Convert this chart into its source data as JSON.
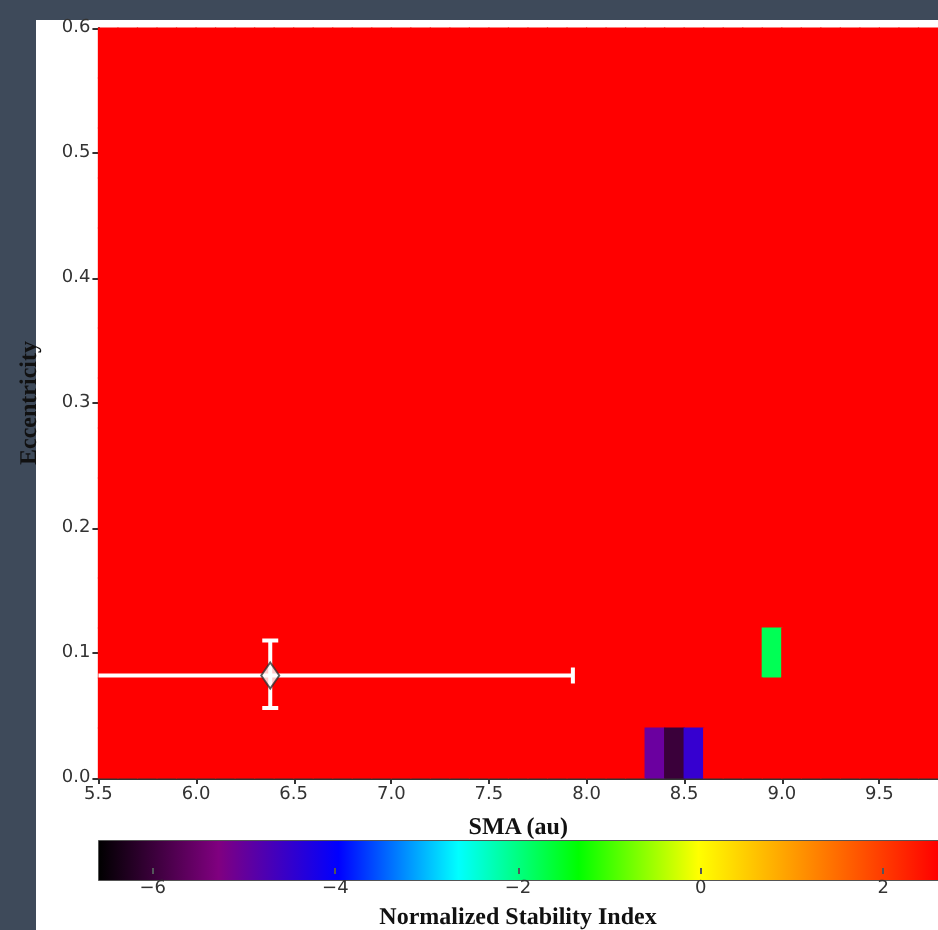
{
  "chart_data": {
    "type": "scatter",
    "xlabel": "SMA (au)",
    "ylabel": "Eccentricity",
    "clabel": "Normalized Stability Index",
    "marker": "square",
    "x": [
      5.55,
      5.65,
      5.75,
      5.85,
      5.95,
      6.05,
      6.15,
      6.25,
      6.35,
      6.45,
      6.55,
      6.65,
      6.75,
      6.85,
      6.95,
      7.05,
      7.15,
      7.25,
      7.35,
      7.45,
      7.55,
      7.65,
      7.75,
      7.85,
      7.95,
      8.05,
      8.15,
      8.25,
      8.35,
      8.45,
      8.55,
      8.65,
      8.75,
      8.85,
      8.95,
      9.05,
      9.15,
      9.25,
      9.35,
      9.45,
      9.55,
      9.65,
      9.75
    ],
    "xlim": [
      5.5,
      9.8
    ],
    "ylim": [
      0,
      0.6
    ],
    "xticks": [
      5.5,
      {
        "value": 6,
        "label": "6.0"
      },
      6.5,
      {
        "value": 7,
        "label": "7.0"
      },
      7.5,
      {
        "value": 8,
        "label": "8.0"
      },
      8.5,
      {
        "value": 9,
        "label": "9.0"
      },
      9.5
    ],
    "yticks": [
      {
        "value": 0,
        "label": "0.0"
      },
      0.1,
      0.2,
      0.3,
      0.4,
      0.5,
      0.6
    ],
    "clim": [
      -6.6,
      2.6
    ],
    "cticks": [
      {
        "value": -6,
        "label": "−6"
      },
      {
        "value": -4,
        "label": "−4"
      },
      {
        "value": -2,
        "label": "−2"
      },
      0,
      2
    ],
    "series": [
      {
        "values": [
          0.58,
          0.58,
          0.58,
          0.58,
          0.58,
          0.58,
          0.58,
          0.58,
          0.58,
          0.58,
          0.58,
          0.58,
          0.58,
          0.58,
          0.58,
          0.58,
          0.58,
          0.58,
          0.58,
          0.58,
          0.58,
          0.58,
          0.58,
          0.58,
          0.58,
          0.58,
          0.58,
          0.58,
          0.58,
          0.58,
          0.58,
          0.58,
          0.58,
          0.58,
          0.58,
          0.58,
          0.58,
          0.58,
          0.58,
          0.58,
          0.58,
          0.58,
          0.58
        ],
        "cvalues": [
          2.6,
          2.6,
          2.6,
          2.6,
          2.6,
          2.6,
          2.6,
          2.6,
          2.6,
          2.6,
          2.6,
          2.6,
          2.6,
          2.6,
          2.6,
          2.6,
          2.6,
          2.6,
          2.6,
          2.6,
          2.6,
          2.6,
          2.6,
          2.6,
          2.6,
          2.6,
          2.6,
          2.6,
          2.6,
          2.6,
          2.6,
          2.6,
          2.6,
          2.6,
          2.6,
          2.6,
          2.6,
          2.6,
          2.6,
          2.6,
          2.6,
          2.6,
          2.6
        ]
      },
      {
        "values": [
          0.54,
          0.54,
          0.54,
          0.54,
          0.54,
          0.54,
          0.54,
          0.54,
          0.54,
          0.54,
          0.54,
          0.54,
          0.54,
          0.54,
          0.54,
          0.54,
          0.54,
          0.54,
          0.54,
          0.54,
          0.54,
          0.54,
          0.54,
          0.54,
          0.54,
          0.54,
          0.54,
          0.54,
          0.54,
          0.54,
          0.54,
          0.54,
          0.54,
          0.54,
          0.54,
          0.54,
          0.54,
          0.54,
          0.54,
          0.54,
          0.54,
          0.54,
          0.54
        ],
        "cvalues": [
          2.6,
          2.6,
          2.6,
          2.6,
          2.6,
          2.6,
          2.6,
          2.6,
          2.6,
          2.6,
          2.6,
          2.6,
          2.6,
          2.6,
          2.6,
          2.6,
          2.6,
          2.6,
          2.6,
          2.6,
          2.6,
          2.6,
          2.6,
          2.6,
          2.6,
          2.6,
          2.6,
          2.6,
          2.6,
          2.6,
          2.6,
          2.6,
          2.6,
          2.6,
          2.6,
          2.6,
          2.6,
          2.6,
          2.6,
          2.6,
          2.6,
          2.6,
          2.6
        ]
      },
      {
        "values": [
          0.5,
          0.5,
          0.5,
          0.5,
          0.5,
          0.5,
          0.5,
          0.5,
          0.5,
          0.5,
          0.5,
          0.5,
          0.5,
          0.5,
          0.5,
          0.5,
          0.5,
          0.5,
          0.5,
          0.5,
          0.5,
          0.5,
          0.5,
          0.5,
          0.5,
          0.5,
          0.5,
          0.5,
          0.5,
          0.5,
          0.5,
          0.5,
          0.5,
          0.5,
          0.5,
          0.5,
          0.5,
          0.5,
          0.5,
          0.5,
          0.5,
          0.5,
          0.5
        ],
        "cvalues": [
          2.6,
          2.6,
          2.6,
          2.6,
          2.6,
          2.6,
          2.6,
          2.6,
          2.6,
          2.6,
          2.6,
          2.6,
          2.6,
          2.6,
          2.6,
          2.6,
          2.6,
          2.6,
          2.6,
          2.6,
          2.6,
          2.6,
          2.6,
          2.6,
          2.6,
          2.6,
          2.6,
          2.6,
          2.6,
          2.6,
          2.6,
          2.6,
          2.6,
          2.6,
          2.6,
          2.6,
          2.6,
          2.6,
          2.6,
          2.6,
          2.6,
          2.6,
          2.6
        ]
      },
      {
        "values": [
          0.46,
          0.46,
          0.46,
          0.46,
          0.46,
          0.46,
          0.46,
          0.46,
          0.46,
          0.46,
          0.46,
          0.46,
          0.46,
          0.46,
          0.46,
          0.46,
          0.46,
          0.46,
          0.46,
          0.46,
          0.46,
          0.46,
          0.46,
          0.46,
          0.46,
          0.46,
          0.46,
          0.46,
          0.46,
          0.46,
          0.46,
          0.46,
          0.46,
          0.46,
          0.46,
          0.46,
          0.46,
          0.46,
          0.46,
          0.46,
          0.46,
          0.46,
          0.46
        ],
        "cvalues": [
          2.6,
          2.6,
          2.6,
          2.6,
          2.6,
          2.6,
          2.6,
          2.6,
          2.6,
          2.6,
          2.6,
          2.6,
          2.6,
          2.6,
          2.6,
          2.6,
          2.6,
          2.6,
          2.6,
          2.6,
          2.6,
          2.6,
          2.6,
          2.6,
          2.6,
          2.6,
          2.6,
          2.6,
          2.6,
          2.6,
          2.6,
          2.6,
          2.6,
          2.6,
          2.6,
          2.6,
          2.6,
          2.6,
          2.6,
          2.6,
          2.6,
          2.6,
          2.6
        ]
      },
      {
        "values": [
          0.42,
          0.42,
          0.42,
          0.42,
          0.42,
          0.42,
          0.42,
          0.42,
          0.42,
          0.42,
          0.42,
          0.42,
          0.42,
          0.42,
          0.42,
          0.42,
          0.42,
          0.42,
          0.42,
          0.42,
          0.42,
          0.42,
          0.42,
          0.42,
          0.42,
          0.42,
          0.42,
          0.42,
          0.42,
          0.42,
          0.42,
          0.42,
          0.42,
          0.42,
          0.42,
          0.42,
          0.42,
          0.42,
          0.42,
          0.42,
          0.42,
          0.42,
          0.42
        ],
        "cvalues": [
          2.6,
          2.6,
          2.6,
          2.6,
          2.6,
          2.6,
          2.6,
          2.6,
          2.6,
          2.6,
          2.6,
          2.6,
          2.6,
          2.6,
          2.6,
          2.6,
          2.6,
          2.6,
          2.6,
          2.6,
          2.6,
          2.6,
          2.6,
          2.6,
          2.6,
          2.6,
          2.6,
          2.6,
          2.6,
          2.6,
          2.6,
          2.6,
          2.6,
          2.6,
          2.6,
          2.6,
          2.6,
          2.6,
          2.6,
          2.6,
          2.6,
          2.6,
          2.6
        ]
      },
      {
        "values": [
          0.38,
          0.38,
          0.38,
          0.38,
          0.38,
          0.38,
          0.38,
          0.38,
          0.38,
          0.38,
          0.38,
          0.38,
          0.38,
          0.38,
          0.38,
          0.38,
          0.38,
          0.38,
          0.38,
          0.38,
          0.38,
          0.38,
          0.38,
          0.38,
          0.38,
          0.38,
          0.38,
          0.38,
          0.38,
          0.38,
          0.38,
          0.38,
          0.38,
          0.38,
          0.38,
          0.38,
          0.38,
          0.38,
          0.38,
          0.38,
          0.38,
          0.38,
          0.38
        ],
        "cvalues": [
          2.6,
          2.6,
          2.6,
          2.6,
          2.6,
          2.6,
          2.6,
          2.6,
          2.6,
          2.6,
          2.6,
          2.6,
          2.6,
          2.6,
          2.6,
          2.6,
          2.6,
          2.6,
          2.6,
          2.6,
          2.6,
          2.6,
          2.6,
          2.6,
          2.6,
          2.6,
          2.6,
          2.6,
          2.6,
          2.6,
          2.6,
          2.6,
          2.6,
          2.6,
          2.6,
          2.6,
          2.6,
          2.6,
          2.6,
          2.6,
          2.6,
          2.6,
          2.6
        ]
      },
      {
        "values": [
          0.34,
          0.34,
          0.34,
          0.34,
          0.34,
          0.34,
          0.34,
          0.34,
          0.34,
          0.34,
          0.34,
          0.34,
          0.34,
          0.34,
          0.34,
          0.34,
          0.34,
          0.34,
          0.34,
          0.34,
          0.34,
          0.34,
          0.34,
          0.34,
          0.34,
          0.34,
          0.34,
          0.34,
          0.34,
          0.34,
          0.34,
          0.34,
          0.34,
          0.34,
          0.34,
          0.34,
          0.34,
          0.34,
          0.34,
          0.34,
          0.34,
          0.34,
          0.34
        ],
        "cvalues": [
          2.6,
          2.6,
          2.6,
          2.6,
          2.6,
          2.6,
          2.6,
          2.6,
          2.6,
          2.6,
          2.6,
          2.6,
          2.6,
          2.6,
          2.6,
          2.6,
          2.6,
          2.6,
          2.6,
          2.6,
          2.6,
          2.6,
          2.6,
          2.6,
          2.6,
          2.6,
          2.6,
          2.6,
          2.6,
          2.6,
          2.6,
          2.6,
          2.6,
          2.6,
          2.6,
          2.6,
          2.6,
          2.6,
          2.6,
          2.6,
          2.6,
          2.6,
          2.6
        ]
      },
      {
        "values": [
          0.3,
          0.3,
          0.3,
          0.3,
          0.3,
          0.3,
          0.3,
          0.3,
          0.3,
          0.3,
          0.3,
          0.3,
          0.3,
          0.3,
          0.3,
          0.3,
          0.3,
          0.3,
          0.3,
          0.3,
          0.3,
          0.3,
          0.3,
          0.3,
          0.3,
          0.3,
          0.3,
          0.3,
          0.3,
          0.3,
          0.3,
          0.3,
          0.3,
          0.3,
          0.3,
          0.3,
          0.3,
          0.3,
          0.3,
          0.3,
          0.3,
          0.3,
          0.3
        ],
        "cvalues": [
          2.6,
          2.6,
          2.6,
          2.6,
          2.6,
          2.6,
          2.6,
          2.6,
          2.6,
          2.6,
          2.6,
          2.6,
          2.6,
          2.6,
          2.6,
          2.6,
          2.6,
          2.6,
          2.6,
          2.6,
          2.6,
          2.6,
          2.6,
          2.6,
          2.6,
          2.6,
          2.6,
          2.6,
          2.6,
          2.6,
          2.6,
          2.6,
          2.6,
          2.6,
          2.6,
          2.6,
          2.6,
          2.6,
          2.6,
          2.6,
          2.6,
          2.6,
          2.6
        ]
      },
      {
        "values": [
          0.26,
          0.26,
          0.26,
          0.26,
          0.26,
          0.26,
          0.26,
          0.26,
          0.26,
          0.26,
          0.26,
          0.26,
          0.26,
          0.26,
          0.26,
          0.26,
          0.26,
          0.26,
          0.26,
          0.26,
          0.26,
          0.26,
          0.26,
          0.26,
          0.26,
          0.26,
          0.26,
          0.26,
          0.26,
          0.26,
          0.26,
          0.26,
          0.26,
          0.26,
          0.26,
          0.26,
          0.26,
          0.26,
          0.26,
          0.26,
          0.26,
          0.26,
          0.26
        ],
        "cvalues": [
          2.6,
          2.6,
          2.6,
          2.6,
          2.6,
          2.6,
          2.6,
          2.6,
          2.6,
          2.6,
          2.6,
          2.6,
          2.6,
          2.6,
          2.6,
          2.6,
          2.6,
          2.6,
          2.6,
          2.6,
          2.6,
          2.6,
          2.6,
          2.6,
          2.6,
          2.6,
          2.6,
          2.6,
          2.6,
          2.6,
          2.6,
          2.6,
          2.6,
          2.6,
          2.6,
          2.6,
          2.6,
          2.6,
          2.6,
          2.6,
          2.6,
          2.6,
          2.6
        ]
      },
      {
        "values": [
          0.22,
          0.22,
          0.22,
          0.22,
          0.22,
          0.22,
          0.22,
          0.22,
          0.22,
          0.22,
          0.22,
          0.22,
          0.22,
          0.22,
          0.22,
          0.22,
          0.22,
          0.22,
          0.22,
          0.22,
          0.22,
          0.22,
          0.22,
          0.22,
          0.22,
          0.22,
          0.22,
          0.22,
          0.22,
          0.22,
          0.22,
          0.22,
          0.22,
          0.22,
          0.22,
          0.22,
          0.22,
          0.22,
          0.22,
          0.22,
          0.22,
          0.22,
          0.22
        ],
        "cvalues": [
          2.6,
          2.6,
          2.6,
          2.6,
          2.6,
          2.6,
          2.6,
          2.6,
          2.6,
          2.6,
          2.6,
          2.6,
          2.6,
          2.6,
          2.6,
          2.6,
          2.6,
          2.6,
          2.6,
          2.6,
          2.6,
          2.6,
          2.6,
          2.6,
          2.6,
          2.6,
          2.6,
          2.6,
          2.6,
          2.6,
          2.6,
          2.6,
          2.6,
          2.6,
          2.6,
          2.6,
          2.6,
          2.6,
          2.6,
          2.6,
          2.6,
          2.6,
          2.6
        ]
      },
      {
        "values": [
          0.18,
          0.18,
          0.18,
          0.18,
          0.18,
          0.18,
          0.18,
          0.18,
          0.18,
          0.18,
          0.18,
          0.18,
          0.18,
          0.18,
          0.18,
          0.18,
          0.18,
          0.18,
          0.18,
          0.18,
          0.18,
          0.18,
          0.18,
          0.18,
          0.18,
          0.18,
          0.18,
          0.18,
          0.18,
          0.18,
          0.18,
          0.18,
          0.18,
          0.18,
          0.18,
          0.18,
          0.18,
          0.18,
          0.18,
          0.18,
          0.18,
          0.18,
          0.18
        ],
        "cvalues": [
          2.6,
          2.6,
          2.6,
          2.6,
          2.6,
          2.6,
          2.6,
          2.6,
          2.6,
          2.6,
          2.6,
          2.6,
          2.6,
          2.6,
          2.6,
          2.6,
          2.6,
          2.6,
          2.6,
          2.6,
          2.6,
          2.6,
          2.6,
          2.6,
          2.6,
          2.6,
          2.6,
          2.6,
          2.6,
          2.6,
          2.6,
          2.6,
          2.6,
          2.6,
          2.6,
          2.6,
          2.6,
          2.6,
          2.6,
          2.6,
          2.6,
          2.6,
          2.6
        ]
      },
      {
        "values": [
          0.14,
          0.14,
          0.14,
          0.14,
          0.14,
          0.14,
          0.14,
          0.14,
          0.14,
          0.14,
          0.14,
          0.14,
          0.14,
          0.14,
          0.14,
          0.14,
          0.14,
          0.14,
          0.14,
          0.14,
          0.14,
          0.14,
          0.14,
          0.14,
          0.14,
          0.14,
          0.14,
          0.14,
          0.14,
          0.14,
          0.14,
          0.14,
          0.14,
          0.14,
          0.14,
          0.14,
          0.14,
          0.14,
          0.14,
          0.14,
          0.14,
          0.14,
          0.14
        ],
        "cvalues": [
          2.6,
          2.6,
          2.6,
          2.6,
          2.6,
          2.6,
          2.6,
          2.6,
          2.6,
          2.6,
          2.6,
          2.6,
          2.6,
          2.6,
          2.6,
          2.6,
          2.6,
          2.6,
          2.6,
          2.6,
          2.6,
          2.6,
          2.6,
          2.6,
          2.6,
          2.6,
          2.6,
          2.6,
          2.6,
          2.6,
          2.6,
          2.6,
          2.6,
          2.6,
          2.6,
          2.6,
          2.6,
          2.6,
          2.6,
          2.6,
          2.6,
          2.6,
          2.6
        ]
      },
      {
        "values": [
          0.1,
          0.1,
          0.1,
          0.1,
          0.1,
          0.1,
          0.1,
          0.1,
          0.1,
          0.1,
          0.1,
          0.1,
          0.1,
          0.1,
          0.1,
          0.1,
          0.1,
          0.1,
          0.1,
          0.1,
          0.1,
          0.1,
          0.1,
          0.1,
          0.1,
          0.1,
          0.1,
          0.1,
          0.1,
          0.1,
          0.1,
          0.1,
          0.1,
          0.1,
          0.1,
          0.1,
          0.1,
          0.1,
          0.1,
          0.1,
          0.1,
          0.1,
          0.1
        ],
        "cvalues": [
          2.6,
          2.6,
          2.6,
          2.6,
          2.6,
          2.6,
          2.6,
          2.6,
          2.6,
          2.6,
          2.6,
          2.6,
          2.6,
          2.6,
          2.6,
          2.6,
          2.6,
          2.6,
          2.6,
          2.6,
          2.6,
          2.6,
          2.6,
          2.6,
          2.6,
          2.6,
          2.6,
          2.6,
          2.6,
          2.6,
          2.6,
          2.6,
          2.6,
          2.6,
          -1.8,
          2.6,
          2.6,
          2.6,
          2.6,
          2.6,
          2.6,
          2.6,
          2.6
        ],
        "colors": [
          "#ff0000",
          "#ff0000",
          "#ff0000",
          "#ff0000",
          "#ff0000",
          "#ff0000",
          "#ff0000",
          "#ff0000",
          "#ff0000",
          "#ff0000",
          "#ff0000",
          "#ff0000",
          "#ff0000",
          "#ff0000",
          "#ff0000",
          "#ff0000",
          "#ff0000",
          "#ff0000",
          "#ff0000",
          "#ff0000",
          "#ff0000",
          "#ff0000",
          "#ff0000",
          "#ff0000",
          "#ff0000",
          "#ff0000",
          "#ff0000",
          "#ff0000",
          "#ff0000",
          "#ff0000",
          "#ff0000",
          "#ff0000",
          "#ff0000",
          "#ff0000",
          "#00ff55",
          "#ff0000",
          "#ff0000",
          "#ff0000",
          "#ff0000",
          "#ff0000",
          "#ff0000",
          "#ff0000",
          "#ff0000"
        ]
      },
      {
        "values": [
          0.06,
          0.06,
          0.06,
          0.06,
          0.06,
          0.06,
          0.06,
          0.06,
          0.06,
          0.06,
          0.06,
          0.06,
          0.06,
          0.06,
          0.06,
          0.06,
          0.06,
          0.06,
          0.06,
          0.06,
          0.06,
          0.06,
          0.06,
          0.06,
          0.06,
          0.06,
          0.06,
          0.06,
          0.06,
          0.06,
          0.06,
          0.06,
          0.06,
          0.06,
          0.06,
          0.06,
          0.06,
          0.06,
          0.06,
          0.06,
          0.06,
          0.06,
          0.06
        ],
        "cvalues": [
          2.6,
          2.6,
          2.6,
          2.6,
          2.6,
          2.6,
          2.6,
          2.6,
          2.6,
          2.6,
          2.6,
          2.6,
          2.6,
          2.6,
          2.6,
          2.6,
          2.6,
          2.6,
          2.6,
          2.6,
          2.6,
          2.6,
          2.6,
          2.6,
          2.6,
          2.6,
          2.6,
          2.6,
          2.6,
          2.6,
          2.6,
          2.6,
          2.6,
          2.6,
          2.6,
          2.6,
          2.6,
          2.6,
          2.6,
          2.6,
          2.6,
          2.6,
          2.6
        ]
      },
      {
        "values": [
          0.02,
          0.02,
          0.02,
          0.02,
          0.02,
          0.02,
          0.02,
          0.02,
          0.02,
          0.02,
          0.02,
          0.02,
          0.02,
          0.02,
          0.02,
          0.02,
          0.02,
          0.02,
          0.02,
          0.02,
          0.02,
          0.02,
          0.02,
          0.02,
          0.02,
          0.02,
          0.02,
          0.02,
          0.02,
          0.02,
          0.02,
          0.02,
          0.02,
          0.02,
          0.02,
          0.02,
          0.02,
          0.02,
          0.02,
          0.02,
          0.02,
          0.02,
          0.02
        ],
        "cvalues": [
          2.6,
          2.6,
          2.6,
          2.6,
          2.6,
          2.6,
          2.6,
          2.6,
          2.6,
          2.6,
          2.6,
          2.6,
          2.6,
          2.6,
          2.6,
          2.6,
          2.6,
          2.6,
          2.6,
          2.6,
          2.6,
          2.6,
          2.6,
          2.6,
          2.6,
          2.6,
          2.6,
          2.6,
          -5.0,
          -6.0,
          -4.5,
          2.6,
          2.6,
          2.6,
          2.6,
          2.6,
          2.6,
          2.6,
          2.6,
          2.6,
          2.6,
          2.6,
          2.6
        ],
        "colors": [
          "#ff0000",
          "#ff0000",
          "#ff0000",
          "#ff0000",
          "#ff0000",
          "#ff0000",
          "#ff0000",
          "#ff0000",
          "#ff0000",
          "#ff0000",
          "#ff0000",
          "#ff0000",
          "#ff0000",
          "#ff0000",
          "#ff0000",
          "#ff0000",
          "#ff0000",
          "#ff0000",
          "#ff0000",
          "#ff0000",
          "#ff0000",
          "#ff0000",
          "#ff0000",
          "#ff0000",
          "#ff0000",
          "#ff0000",
          "#ff0000",
          "#ff0000",
          "#6b00a0",
          "#3a003a",
          "#3600d0",
          "#ff0000",
          "#ff0000",
          "#ff0000",
          "#ff0000",
          "#ff0000",
          "#ff0000",
          "#ff0000",
          "#ff0000",
          "#ff0000",
          "#ff0000",
          "#ff0000",
          "#ff0000"
        ]
      },
      {
        "x": [
          6.38
        ],
        "values": [
          0.082
        ],
        "xerrors": [
          [
            5.5,
            7.93
          ]
        ],
        "errors": [
          [
            0.056,
            0.11
          ]
        ],
        "color": "#ffffff",
        "marker": "diamond"
      }
    ]
  }
}
